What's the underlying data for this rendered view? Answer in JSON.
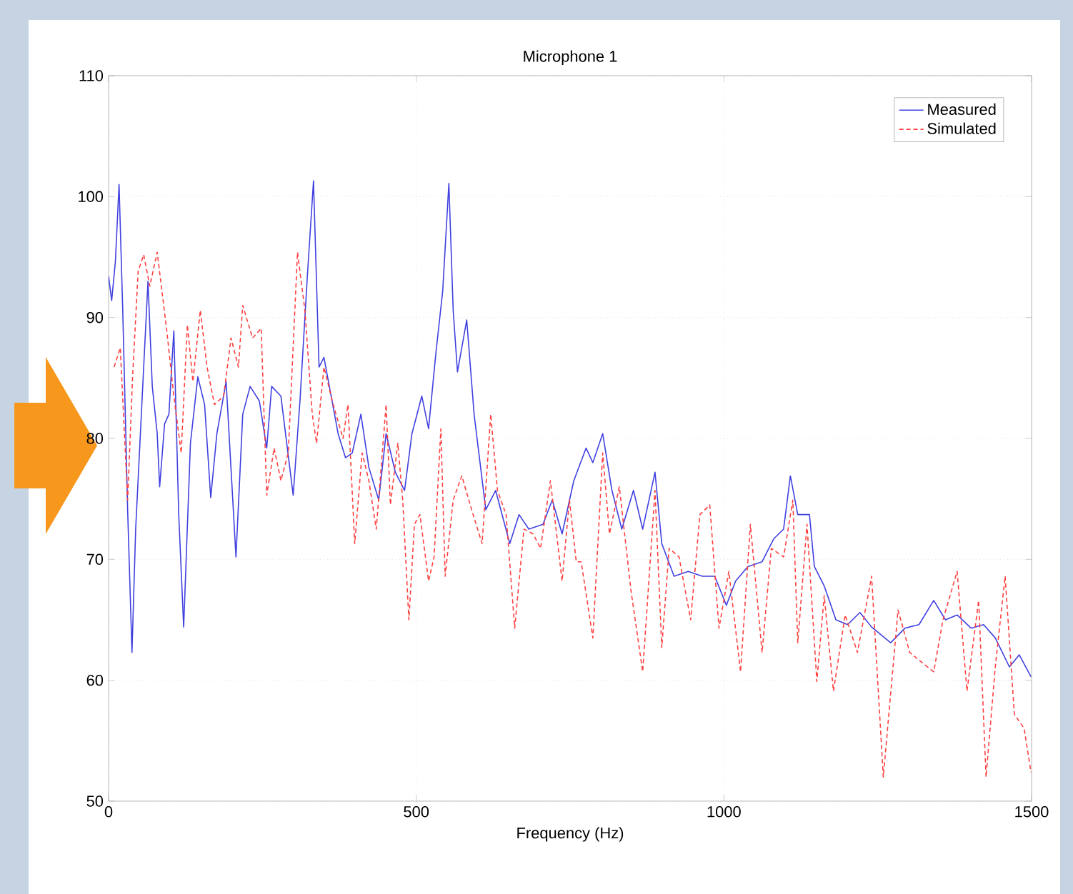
{
  "chart_data": {
    "type": "line",
    "title": "Microphone 1",
    "xlabel": "Frequency (Hz)",
    "xlim": [
      0,
      1500
    ],
    "xticks": [
      0,
      500,
      1000,
      1500
    ],
    "ylim": [
      50,
      110
    ],
    "yticks": [
      50,
      60,
      70,
      80,
      90,
      100,
      110
    ],
    "grid": true,
    "legend": "top right",
    "marker": "none",
    "series": [
      {
        "name": "Measured",
        "color": "#4040e0",
        "line_style": "solid",
        "x": [
          0,
          5,
          11,
          17,
          23,
          31,
          38,
          44,
          54,
          64,
          71,
          79,
          83,
          91,
          98,
          106,
          114,
          122,
          133,
          145,
          156,
          166,
          176,
          191,
          207,
          218,
          230,
          245,
          257,
          265,
          280,
          300,
          311,
          323,
          333,
          342,
          350,
          373,
          385,
          396,
          410,
          423,
          439,
          451,
          466,
          481,
          493,
          509,
          520,
          532,
          543,
          553,
          560,
          567,
          582,
          594,
          613,
          629,
          652,
          667,
          683,
          706,
          721,
          737,
          756,
          776,
          787,
          803,
          818,
          834,
          853,
          868,
          888,
          899,
          919,
          942,
          965,
          985,
          1004,
          1019,
          1039,
          1062,
          1081,
          1097,
          1108,
          1120,
          1139,
          1147,
          1163,
          1182,
          1201,
          1221,
          1240,
          1271,
          1294,
          1317,
          1341,
          1360,
          1379,
          1402,
          1422,
          1441,
          1464,
          1480,
          1499
        ],
        "values": [
          93.4,
          91.4,
          94.6,
          101,
          90.6,
          74,
          62.3,
          72.5,
          82.8,
          93,
          84.3,
          80.4,
          76,
          81.2,
          82,
          88.9,
          73.7,
          64.4,
          79.6,
          85.1,
          82.8,
          75.1,
          80.4,
          84.7,
          70.2,
          82,
          84.3,
          83.1,
          79.2,
          84.3,
          83.5,
          75.3,
          83.1,
          93.4,
          101.3,
          85.9,
          86.7,
          80.4,
          78.4,
          78.8,
          82,
          77.6,
          74.9,
          80.4,
          77.2,
          75.7,
          80.4,
          83.5,
          80.8,
          87.1,
          92.2,
          101.1,
          90.6,
          85.5,
          89.8,
          82,
          74.1,
          75.7,
          71.3,
          73.7,
          72.5,
          72.9,
          74.9,
          72.1,
          76.5,
          79.2,
          78,
          80.4,
          75.7,
          72.5,
          75.7,
          72.5,
          77.2,
          71.3,
          68.6,
          69,
          68.6,
          68.6,
          66.2,
          68.2,
          69.4,
          69.8,
          71.7,
          72.5,
          76.9,
          73.7,
          73.7,
          69.4,
          67.8,
          65,
          64.6,
          65.6,
          64.4,
          63.1,
          64.3,
          64.6,
          66.6,
          65,
          65.4,
          64.3,
          64.6,
          63.5,
          61.1,
          62.1,
          60.3
        ]
      },
      {
        "name": "Simulated",
        "color": "#ff4040",
        "line_style": "dashed",
        "x": [
          9,
          19,
          31,
          39,
          48,
          57,
          67,
          79,
          95,
          106,
          118,
          128,
          137,
          149,
          160,
          172,
          187,
          199,
          211,
          218,
          234,
          248,
          257,
          269,
          280,
          292,
          307,
          319,
          331,
          338,
          350,
          365,
          381,
          389,
          400,
          412,
          423,
          435,
          451,
          458,
          470,
          478,
          488,
          497,
          506,
          520,
          529,
          540,
          547,
          560,
          574,
          590,
          607,
          621,
          632,
          646,
          660,
          675,
          690,
          702,
          718,
          737,
          749,
          760,
          768,
          787,
          803,
          814,
          830,
          849,
          868,
          888,
          899,
          911,
          927,
          946,
          961,
          977,
          992,
          1008,
          1027,
          1043,
          1062,
          1077,
          1097,
          1112,
          1120,
          1135,
          1151,
          1163,
          1178,
          1197,
          1217,
          1240,
          1259,
          1283,
          1302,
          1321,
          1341,
          1356,
          1379,
          1395,
          1414,
          1426,
          1441,
          1457,
          1472,
          1488,
          1499
        ],
        "values": [
          85.9,
          87.5,
          74.9,
          85.1,
          93.8,
          95.2,
          92.6,
          95.4,
          88.7,
          83.5,
          78.8,
          89.4,
          84.7,
          90.6,
          85.9,
          82.8,
          83.5,
          88.3,
          85.9,
          91,
          88.3,
          89.1,
          75.3,
          79.2,
          76.5,
          78.8,
          95.4,
          90.6,
          82,
          79.6,
          85.9,
          82.8,
          80,
          82.8,
          71.3,
          78.8,
          76.5,
          72.5,
          82.8,
          74.5,
          79.6,
          74.9,
          65,
          72.9,
          73.7,
          68.2,
          70.2,
          80.8,
          68.6,
          74.9,
          76.9,
          74.1,
          71.3,
          82,
          75.7,
          73.7,
          64.3,
          72.5,
          72.1,
          70.9,
          76.5,
          68.2,
          74.9,
          69.8,
          69.8,
          63.5,
          78.8,
          72.1,
          76,
          67.4,
          60.7,
          75.7,
          62.7,
          70.9,
          70.2,
          65,
          73.7,
          74.5,
          64.3,
          69,
          60.7,
          72.9,
          62.3,
          70.9,
          70.2,
          74.9,
          63.1,
          72.9,
          59.9,
          67,
          59.1,
          65.4,
          62.3,
          68.6,
          52,
          65.8,
          62.3,
          61.5,
          60.7,
          65,
          69,
          59.1,
          66.6,
          52,
          61.1,
          68.6,
          57.2,
          56,
          52.4
        ]
      }
    ]
  }
}
